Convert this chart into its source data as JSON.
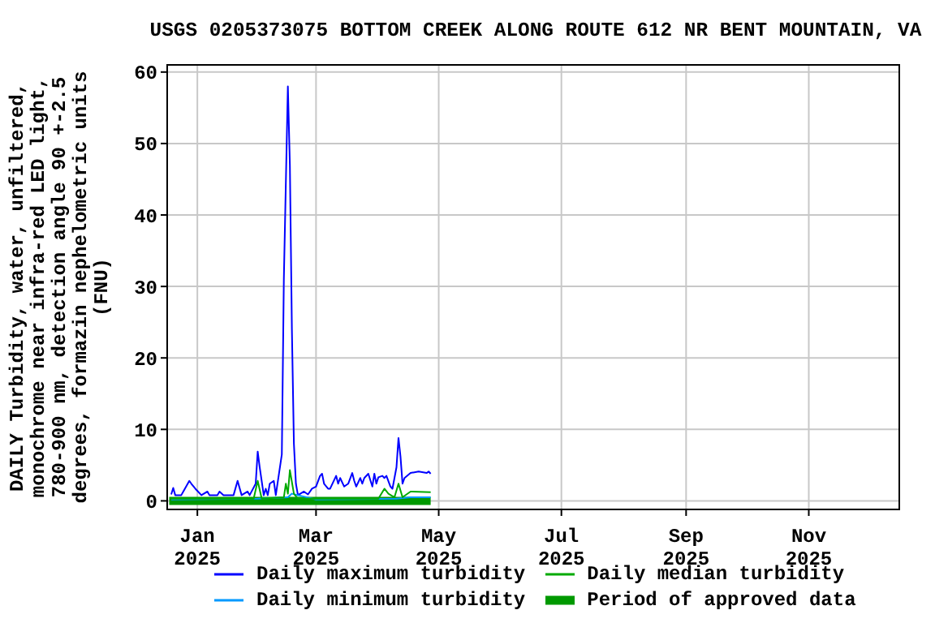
{
  "chart_data": {
    "type": "line",
    "title": "USGS 0205373075 BOTTOM CREEK ALONG ROUTE 612 NR BENT MOUNTAIN, VA",
    "ylabel": "DAILY Turbidity, water, unfiltered,\nmonochrome near infra-red LED light,\n780-900 nm, detection angle 90 +-2.5\ndegrees, formazin nephelometric units\n(FNU)",
    "xlim": [
      "2024-12-17",
      "2025-12-16"
    ],
    "xticks": [
      {
        "value": "2025-01-01",
        "label": "Jan\n2025"
      },
      {
        "value": "2025-03-01",
        "label": "Mar\n2025"
      },
      {
        "value": "2025-05-01",
        "label": "May\n2025"
      },
      {
        "value": "2025-07-01",
        "label": "Jul\n2025"
      },
      {
        "value": "2025-09-01",
        "label": "Sep\n2025"
      },
      {
        "value": "2025-11-01",
        "label": "Nov\n2025"
      }
    ],
    "ylim": [
      -1.2,
      61
    ],
    "yticks": [
      0,
      10,
      20,
      30,
      40,
      50,
      60
    ],
    "grid": true,
    "legend": "bottom",
    "line_style": "solid",
    "marker": "none",
    "series": [
      {
        "name": "Period of approved data",
        "color": "#009900",
        "x": [
          "2024-12-18",
          "2025-04-27"
        ],
        "values": [
          0,
          0
        ]
      },
      {
        "name": "Daily maximum turbidity",
        "color": "#0000ff",
        "x": [
          "2024-12-19",
          "2024-12-20",
          "2024-12-21",
          "2024-12-24",
          "2024-12-25",
          "2024-12-28",
          "2024-12-29",
          "2024-12-31",
          "2025-01-03",
          "2025-01-06",
          "2025-01-07",
          "2025-01-11",
          "2025-01-12",
          "2025-01-14",
          "2025-01-19",
          "2025-01-21",
          "2025-01-23",
          "2025-01-26",
          "2025-01-27",
          "2025-01-30",
          "2025-01-31",
          "2025-02-01",
          "2025-02-03",
          "2025-02-04",
          "2025-02-05",
          "2025-02-06",
          "2025-02-08",
          "2025-02-09",
          "2025-02-12",
          "2025-02-13",
          "2025-02-15",
          "2025-02-16",
          "2025-02-17",
          "2025-02-18",
          "2025-02-19",
          "2025-02-20",
          "2025-02-23",
          "2025-02-25",
          "2025-02-27",
          "2025-03-01",
          "2025-03-03",
          "2025-03-04",
          "2025-03-05",
          "2025-03-07",
          "2025-03-08",
          "2025-03-11",
          "2025-03-12",
          "2025-03-13",
          "2025-03-15",
          "2025-03-17",
          "2025-03-19",
          "2025-03-20",
          "2025-03-21",
          "2025-03-23",
          "2025-03-24",
          "2025-03-25",
          "2025-03-27",
          "2025-03-29",
          "2025-03-30",
          "2025-03-31",
          "2025-04-01",
          "2025-04-03",
          "2025-04-04",
          "2025-04-05",
          "2025-04-07",
          "2025-04-08",
          "2025-04-10",
          "2025-04-11",
          "2025-04-12",
          "2025-04-13",
          "2025-04-14",
          "2025-04-17",
          "2025-04-21",
          "2025-04-25",
          "2025-04-26",
          "2025-04-27"
        ],
        "values": [
          0.9,
          1.8,
          0.8,
          0.8,
          1.3,
          2.8,
          2.4,
          1.7,
          0.8,
          1.3,
          0.8,
          0.8,
          1.3,
          0.8,
          0.8,
          2.8,
          0.8,
          1.3,
          0.8,
          2.4,
          6.9,
          4.7,
          0.8,
          1.7,
          0.8,
          2.4,
          2.8,
          0.8,
          6.5,
          31,
          58,
          47,
          24,
          8,
          2.4,
          0.8,
          1.3,
          0.9,
          1.7,
          2,
          3.5,
          3.8,
          2.4,
          1.7,
          1.7,
          3.5,
          2.4,
          3.2,
          2,
          2.4,
          3.9,
          2.8,
          2,
          3.2,
          2.4,
          3.2,
          3.8,
          2,
          3.8,
          2.4,
          3.3,
          3.5,
          3.2,
          3.5,
          2,
          1.7,
          4.7,
          8.8,
          6.2,
          2.4,
          3.2,
          3.9,
          4.1,
          3.9,
          4.1,
          3.8
        ]
      },
      {
        "name": "Daily minimum turbidity",
        "color": "#0099ff",
        "x": [
          "2024-12-19",
          "2025-01-31",
          "2025-02-15",
          "2025-02-17",
          "2025-03-01",
          "2025-04-10",
          "2025-04-17",
          "2025-04-27"
        ],
        "values": [
          0.2,
          0.3,
          0.5,
          1,
          0.2,
          0.3,
          0.5,
          0.5
        ]
      },
      {
        "name": "Daily median turbidity",
        "color": "#00aa00",
        "x": [
          "2024-12-19",
          "2025-01-29",
          "2025-01-31",
          "2025-02-02",
          "2025-02-13",
          "2025-02-14",
          "2025-02-15",
          "2025-02-16",
          "2025-02-18",
          "2025-02-20",
          "2025-04-01",
          "2025-04-04",
          "2025-04-06",
          "2025-04-09",
          "2025-04-11",
          "2025-04-13",
          "2025-04-17",
          "2025-04-27"
        ],
        "values": [
          0.3,
          0.3,
          2.8,
          0.3,
          0.5,
          2.4,
          1,
          4.3,
          1,
          0.3,
          0.3,
          1.7,
          1,
          0.5,
          2.4,
          0.5,
          1.3,
          1.2
        ]
      }
    ]
  }
}
